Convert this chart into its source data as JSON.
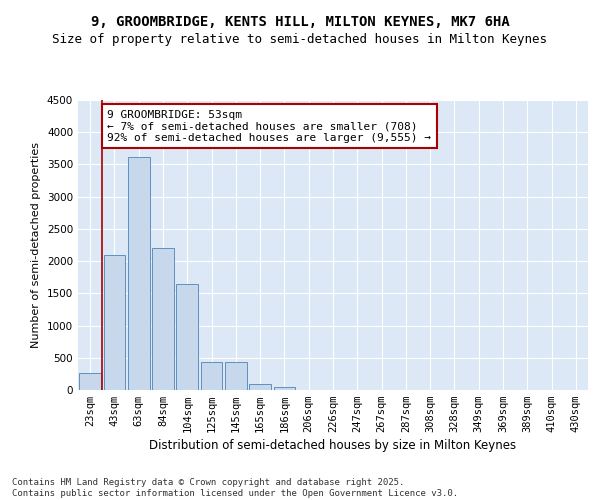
{
  "title": "9, GROOMBRIDGE, KENTS HILL, MILTON KEYNES, MK7 6HA",
  "subtitle": "Size of property relative to semi-detached houses in Milton Keynes",
  "xlabel": "Distribution of semi-detached houses by size in Milton Keynes",
  "ylabel": "Number of semi-detached properties",
  "categories": [
    "23sqm",
    "43sqm",
    "63sqm",
    "84sqm",
    "104sqm",
    "125sqm",
    "145sqm",
    "165sqm",
    "186sqm",
    "206sqm",
    "226sqm",
    "247sqm",
    "267sqm",
    "287sqm",
    "308sqm",
    "328sqm",
    "349sqm",
    "369sqm",
    "389sqm",
    "410sqm",
    "430sqm"
  ],
  "values": [
    270,
    2100,
    3620,
    2200,
    1640,
    430,
    430,
    95,
    50,
    0,
    0,
    0,
    0,
    0,
    0,
    0,
    0,
    0,
    0,
    0,
    0
  ],
  "bar_color": "#c8d8ec",
  "bar_edge_color": "#6090c0",
  "vline_x": 0.5,
  "vline_color": "#aa0000",
  "annotation_text": "9 GROOMBRIDGE: 53sqm\n← 7% of semi-detached houses are smaller (708)\n92% of semi-detached houses are larger (9,555) →",
  "annotation_box_color": "#ffffff",
  "annotation_box_edge": "#aa0000",
  "ylim": [
    0,
    4500
  ],
  "yticks": [
    0,
    500,
    1000,
    1500,
    2000,
    2500,
    3000,
    3500,
    4000,
    4500
  ],
  "plot_bg_color": "#dce8f5",
  "grid_color": "#ffffff",
  "footnote": "Contains HM Land Registry data © Crown copyright and database right 2025.\nContains public sector information licensed under the Open Government Licence v3.0.",
  "title_fontsize": 10,
  "subtitle_fontsize": 9,
  "xlabel_fontsize": 8.5,
  "ylabel_fontsize": 8,
  "tick_fontsize": 7.5,
  "annotation_fontsize": 8,
  "footnote_fontsize": 6.5
}
